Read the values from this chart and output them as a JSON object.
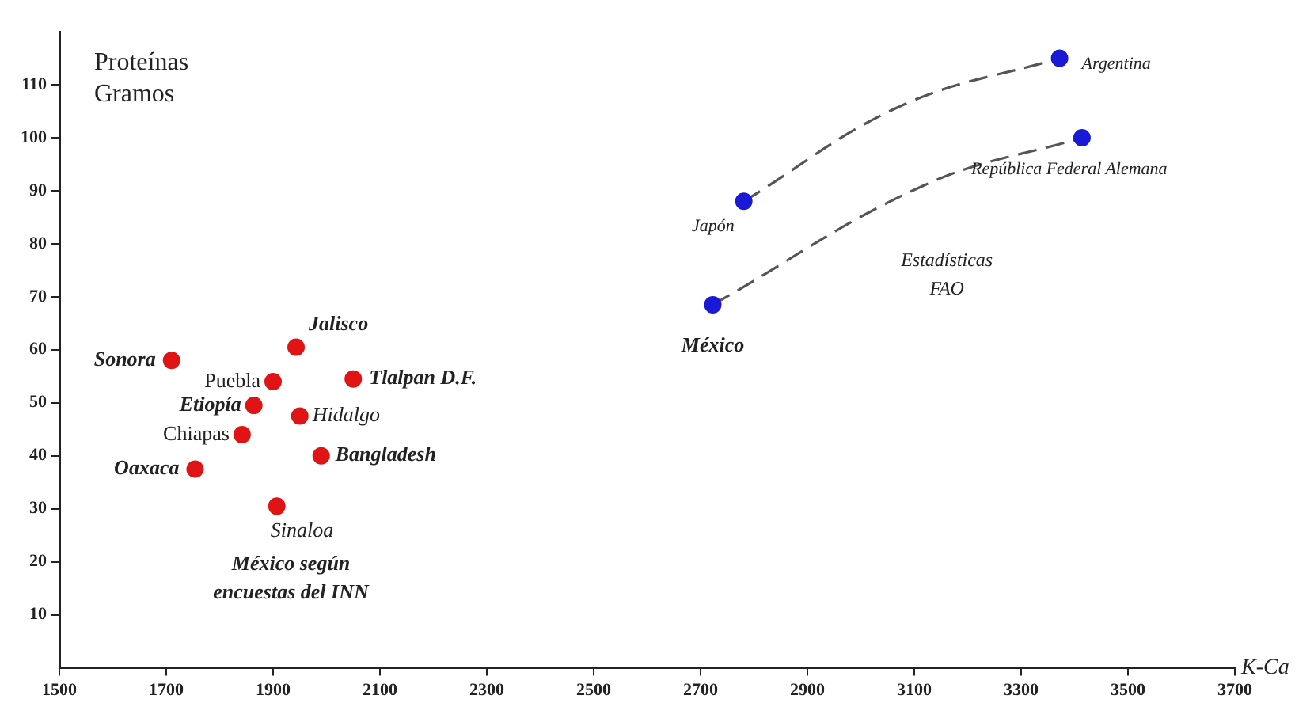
{
  "chart_data": {
    "type": "scatter",
    "xlabel": "K-Ca",
    "ylabel": "Proteínas Gramos",
    "xlim": [
      1500,
      3700
    ],
    "xticks": [
      1500,
      1700,
      1900,
      2100,
      2300,
      2500,
      2700,
      2900,
      3100,
      3300,
      3500,
      3700
    ],
    "ylim": [
      0,
      120
    ],
    "yticks": [
      10,
      20,
      30,
      40,
      50,
      60,
      70,
      80,
      90,
      100,
      110
    ],
    "grid": false,
    "legend": false,
    "series": [
      {
        "color": "#e01414",
        "marker": "circle",
        "x": [
          1710,
          1900,
          1943,
          2050,
          1864,
          1950,
          1842,
          1990,
          1754,
          1907
        ],
        "values": [
          58,
          54,
          60.5,
          54.5,
          49.5,
          47.5,
          44,
          40,
          37.5,
          30.5
        ]
      },
      {
        "color": "#1a1ad6",
        "marker": "circle",
        "x": [
          2723,
          2781,
          3372,
          3414
        ],
        "values": [
          68.5,
          88,
          115,
          100
        ]
      },
      {
        "type": "line",
        "color": "#555555",
        "line_style": "dashed",
        "marker": "none",
        "x": [
          2781,
          3075,
          3372
        ],
        "values": [
          88,
          106,
          115
        ]
      },
      {
        "type": "line",
        "color": "#555555",
        "line_style": "dashed",
        "marker": "none",
        "x": [
          2723,
          3118,
          3414
        ],
        "values": [
          68.5,
          91,
          100
        ]
      }
    ],
    "annotations": [
      {
        "text": "Sonora",
        "x": 1710,
        "y": 58
      },
      {
        "text": "Puebla",
        "x": 1900,
        "y": 54
      },
      {
        "text": "Jalisco",
        "x": 1943,
        "y": 60.5
      },
      {
        "text": "Tlalpan D.F.",
        "x": 2050,
        "y": 54.5
      },
      {
        "text": "Etiopía",
        "x": 1864,
        "y": 49.5
      },
      {
        "text": "Hidalgo",
        "x": 1950,
        "y": 47.5
      },
      {
        "text": "Chiapas",
        "x": 1842,
        "y": 44
      },
      {
        "text": "Bangladesh",
        "x": 1990,
        "y": 40
      },
      {
        "text": "Oaxaca",
        "x": 1754,
        "y": 37.5
      },
      {
        "text": "Sinaloa",
        "x": 1907,
        "y": 30.5
      },
      {
        "text": "México",
        "x": 2723,
        "y": 68.5
      },
      {
        "text": "Japón",
        "x": 2781,
        "y": 88
      },
      {
        "text": "Argentina",
        "x": 3372,
        "y": 115
      },
      {
        "text": "República Federal Alemana",
        "x": 3414,
        "y": 100
      },
      "Estadísticas FAO",
      "México según encuestas del INN"
    ]
  }
}
